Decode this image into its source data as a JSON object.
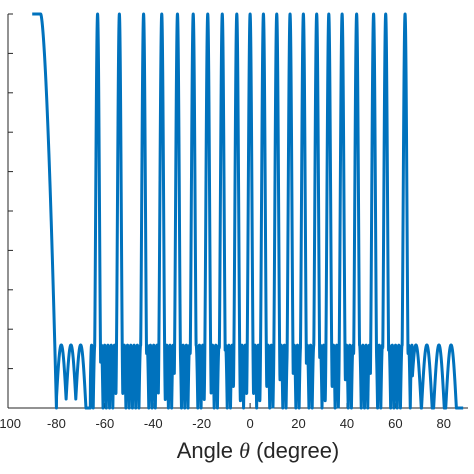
{
  "chart_data": {
    "type": "line",
    "title": "",
    "xlabel": "Angle θ (degree)",
    "ylabel": "",
    "xlim": [
      -100,
      90
    ],
    "ylim": [
      0,
      1
    ],
    "x_ticks": [
      -100,
      -80,
      -60,
      -40,
      -20,
      0,
      20,
      40,
      60,
      80
    ],
    "x_tick_labels": [
      "-100",
      "-80",
      "-60",
      "-40",
      "-20",
      "0",
      "20",
      "40",
      "60",
      "80"
    ],
    "y_tick_count": 10,
    "grid": false,
    "legend": "none",
    "series": [
      {
        "color": "#0072BD",
        "description_points": {
          "flat_top_start": -90,
          "flat_top_end": -86.5,
          "edge_sidelobe_peaks": [
            -78,
            -74,
            -70
          ],
          "main_beam_peaks": [
            -63,
            -54,
            -44,
            -36.5,
            -30,
            -23.5,
            -17.5,
            -11.5,
            -5.5,
            0,
            5.5,
            11,
            16.5,
            22,
            27.5,
            32.5,
            38,
            44,
            51,
            56,
            64
          ],
          "right_sidelobe_peaks": [
            68.5,
            73,
            78,
            83
          ],
          "sidelobe_level": 0.16,
          "peak_level": 1.0
        }
      }
    ],
    "x_axis_title_text": "Angle",
    "x_axis_title_symbol": "θ",
    "x_axis_title_unit": "(degree)"
  }
}
